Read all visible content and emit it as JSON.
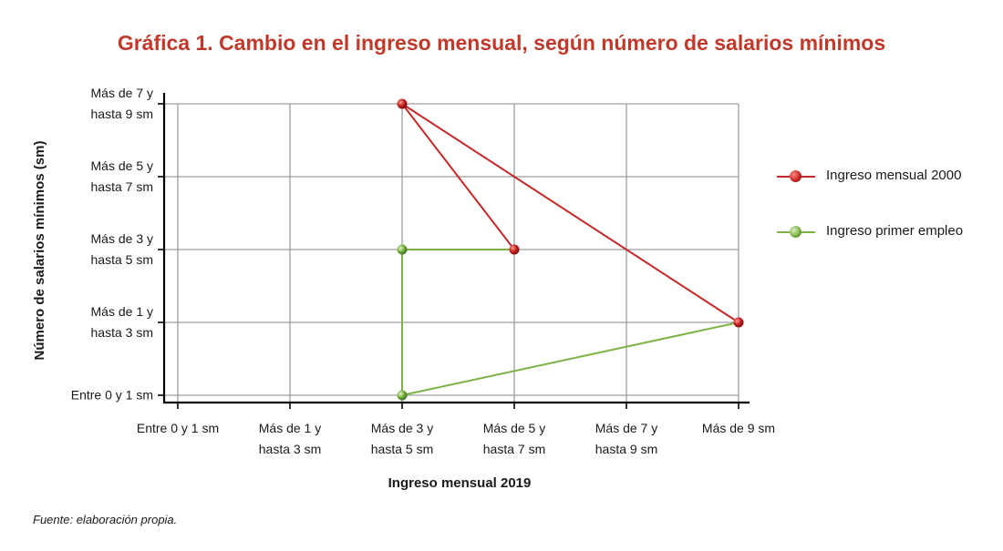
{
  "title": "Gráfica 1. Cambio en el ingreso mensual, según número de salarios mínimos",
  "source": "Fuente: elaboración propia.",
  "colors": {
    "title": "#c0392b",
    "ingreso_2000": "#c62828",
    "primer_empleo": "#7cb342",
    "grid": "#9e9e9e",
    "axis": "#000000"
  },
  "chart_data": {
    "type": "line",
    "xlabel": "Ingreso mensual 2019",
    "ylabel": "Número de salarios mínimos (sm)",
    "x_categories": [
      [
        "Entre 0 y 1 sm"
      ],
      [
        "Más de 1 y",
        "hasta 3 sm"
      ],
      [
        "Más de 3 y",
        "hasta 5 sm"
      ],
      [
        "Más de 5 y",
        "hasta 7 sm"
      ],
      [
        "Más de 7 y",
        "hasta 9 sm"
      ],
      [
        "Más de 9 sm"
      ]
    ],
    "y_categories": [
      [
        "Entre 0 y 1 sm"
      ],
      [
        "Más de 1 y",
        "hasta 3 sm"
      ],
      [
        "Más de 3 y",
        "hasta 5 sm"
      ],
      [
        "Más de 5 y",
        "hasta 7 sm"
      ],
      [
        "Más de 7 y",
        "hasta 9 sm"
      ]
    ],
    "grid": true,
    "legend_position": "right",
    "series": [
      {
        "name": "Ingreso mensual 2000",
        "color": "#c62828",
        "segments": [
          [
            [
              2,
              4
            ],
            [
              3,
              2
            ]
          ],
          [
            [
              2,
              4
            ],
            [
              5,
              1
            ]
          ]
        ],
        "points": [
          [
            2,
            4
          ],
          [
            3,
            2
          ],
          [
            5,
            1
          ]
        ]
      },
      {
        "name": "Ingreso primer empleo",
        "color": "#7cb342",
        "segments": [
          [
            [
              2,
              2
            ],
            [
              3,
              2
            ]
          ],
          [
            [
              2,
              2
            ],
            [
              2,
              0
            ]
          ],
          [
            [
              2,
              0
            ],
            [
              5,
              1
            ]
          ]
        ],
        "points": [
          [
            2,
            2
          ],
          [
            2,
            0
          ]
        ]
      }
    ]
  }
}
